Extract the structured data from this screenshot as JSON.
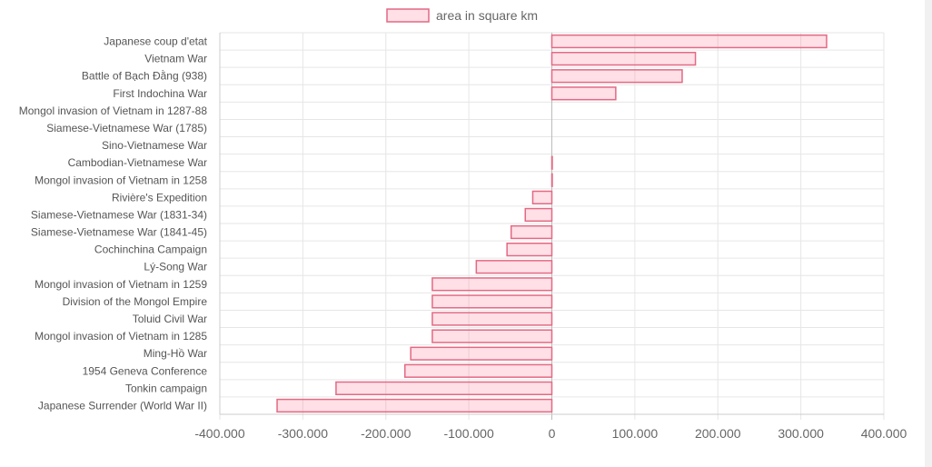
{
  "chart_data": {
    "type": "bar",
    "orientation": "horizontal",
    "legend": {
      "position": "top",
      "label": "area in square km"
    },
    "colors": {
      "bar_fill": "rgba(255,99,132,0.2)",
      "bar_stroke": "#e36983",
      "grid": "#e6e6e6",
      "axis": "#999999"
    },
    "categories": [
      "Japanese coup d'etat",
      "Vietnam War",
      "Battle of Bạch Đằng (938)",
      "First Indochina War",
      "Mongol invasion of Vietnam in 1287-88",
      "Siamese-Vietnamese War (1785)",
      "Sino-Vietnamese War",
      "Cambodian-Vietnamese War",
      "Mongol invasion of Vietnam in 1258",
      "Rivière's Expedition",
      "Siamese-Vietnamese War (1831-34)",
      "Siamese-Vietnamese War (1841-45)",
      "Cochinchina Campaign",
      "Lý-Song War",
      "Mongol invasion of Vietnam in 1259",
      "Division of the Mongol Empire",
      "Toluid Civil War",
      "Mongol invasion of Vietnam in 1285",
      "Ming-Hồ War",
      "1954 Geneva Conference",
      "Tonkin campaign",
      "Japanese Surrender (World War II)"
    ],
    "values": [
      331000,
      173000,
      157000,
      77000,
      0,
      0,
      0,
      500,
      500,
      -23000,
      -32000,
      -49000,
      -54000,
      -91000,
      -144000,
      -144000,
      -144000,
      -144000,
      -170000,
      -177000,
      -260000,
      -331000
    ],
    "xlim": [
      -400000,
      400000
    ],
    "xticks": [
      -400000,
      -300000,
      -200000,
      -100000,
      0,
      100000,
      200000,
      300000,
      400000
    ],
    "xtick_labels": [
      "-400.000",
      "-300.000",
      "-200.000",
      "-100.000",
      "0",
      "100.000",
      "200.000",
      "300.000",
      "400.000"
    ],
    "grid": true
  }
}
